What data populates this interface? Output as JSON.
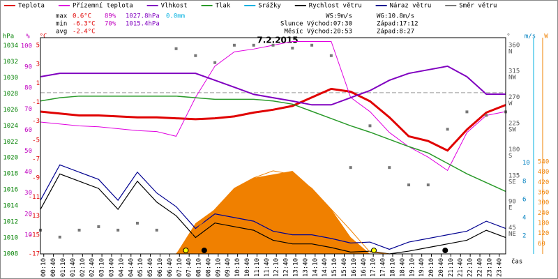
{
  "chart_data": {
    "type": "line",
    "title": "7.2.2015",
    "x_label": "čas",
    "x": [
      0,
      1,
      2,
      3,
      4,
      5,
      6,
      7,
      8,
      9,
      10,
      11,
      12,
      13,
      14,
      15,
      16,
      17,
      18,
      19,
      20,
      21,
      22,
      23,
      24
    ],
    "xlim": [
      0,
      24
    ],
    "xticks": [
      {
        "value": 0.17,
        "label": "00:10"
      },
      {
        "value": 0.67,
        "label": "00:40"
      },
      {
        "value": 1.17,
        "label": "01:10"
      },
      {
        "value": 1.67,
        "label": "01:40"
      },
      {
        "value": 2.17,
        "label": "02:10"
      },
      {
        "value": 2.67,
        "label": "02:40"
      },
      {
        "value": 3.17,
        "label": "03:10"
      },
      {
        "value": 3.67,
        "label": "03:40"
      },
      {
        "value": 4.17,
        "label": "04:10"
      },
      {
        "value": 4.67,
        "label": "04:40"
      },
      {
        "value": 5.17,
        "label": "05:10"
      },
      {
        "value": 5.67,
        "label": "05:40"
      },
      {
        "value": 6.17,
        "label": "06:10"
      },
      {
        "value": 6.67,
        "label": "06:40"
      },
      {
        "value": 7.17,
        "label": "07:10"
      },
      {
        "value": 7.67,
        "label": "07:40"
      },
      {
        "value": 8.17,
        "label": "08:10"
      },
      {
        "value": 8.67,
        "label": "08:40"
      },
      {
        "value": 9.17,
        "label": "09:10"
      },
      {
        "value": 9.67,
        "label": "09:40"
      },
      {
        "value": 10.17,
        "label": "10:10"
      },
      {
        "value": 10.67,
        "label": "10:40"
      },
      {
        "value": 11.17,
        "label": "11:10"
      },
      {
        "value": 11.67,
        "label": "11:40"
      },
      {
        "value": 12.17,
        "label": "12:10"
      },
      {
        "value": 12.67,
        "label": "12:40"
      },
      {
        "value": 13.17,
        "label": "13:10"
      },
      {
        "value": 13.67,
        "label": "13:40"
      },
      {
        "value": 14.17,
        "label": "14:10"
      },
      {
        "value": 14.67,
        "label": "14:40"
      },
      {
        "value": 15.17,
        "label": "15:10"
      },
      {
        "value": 15.67,
        "label": "15:40"
      },
      {
        "value": 16.17,
        "label": "16:10"
      },
      {
        "value": 16.67,
        "label": "16:40"
      },
      {
        "value": 17.17,
        "label": "17:10"
      },
      {
        "value": 17.67,
        "label": "17:40"
      },
      {
        "value": 18.17,
        "label": "18:10"
      },
      {
        "value": 18.67,
        "label": "18:40"
      },
      {
        "value": 19.17,
        "label": "19:10"
      },
      {
        "value": 19.67,
        "label": "19:40"
      },
      {
        "value": 20.17,
        "label": "20:10"
      },
      {
        "value": 20.67,
        "label": "20:40"
      },
      {
        "value": 21.17,
        "label": "21:10"
      },
      {
        "value": 21.67,
        "label": "21:40"
      },
      {
        "value": 22.17,
        "label": "22:10"
      },
      {
        "value": 22.67,
        "label": "22:40"
      },
      {
        "value": 23.17,
        "label": "23:10"
      },
      {
        "value": 23.67,
        "label": "23:40"
      }
    ],
    "axes": [
      {
        "label": "hPa",
        "color": "#008000",
        "lim": [
          1008,
          1035
        ],
        "ticks": [
          1008,
          1010,
          1012,
          1014,
          1016,
          1018,
          1020,
          1022,
          1024,
          1026,
          1028,
          1030,
          1032,
          1034
        ]
      },
      {
        "label": "%",
        "color": "#c000c0",
        "lim": [
          1,
          104
        ],
        "ticks": [
          10,
          20,
          30,
          40,
          50,
          60,
          70,
          80,
          90,
          100
        ]
      },
      {
        "label": "°C",
        "color": "#e00000",
        "lim": [
          -17,
          5.8
        ],
        "ticks": [
          5,
          3,
          1,
          -1,
          -3,
          -5,
          -7,
          -9,
          -11,
          -13,
          -15,
          -17
        ]
      },
      {
        "label": "°",
        "color": "#555555",
        "lim": [
          0,
          373
        ],
        "ticks": [
          {
            "value": 360,
            "label": "360",
            "compass": "N"
          },
          {
            "value": 315,
            "label": "315",
            "compass": "NW"
          },
          {
            "value": 270,
            "label": "270",
            "compass": "W"
          },
          {
            "value": 225,
            "label": "225",
            "compass": "SW"
          },
          {
            "value": 180,
            "label": "180",
            "compass": "S"
          },
          {
            "value": 135,
            "label": "135",
            "compass": "SE"
          },
          {
            "value": 90,
            "label": "90",
            "compass": "E"
          },
          {
            "value": 45,
            "label": "45",
            "compass": "NE"
          }
        ]
      },
      {
        "label": "m/s",
        "color": "#0080c0",
        "lim": [
          0,
          23.8
        ],
        "ticks": [
          2,
          4,
          6,
          8,
          10
        ]
      },
      {
        "label": "W",
        "color": "#f08000",
        "lim": [
          0,
          1268
        ],
        "ticks": [
          60,
          120,
          180,
          240,
          300,
          360,
          420,
          480,
          540
        ]
      }
    ],
    "hline": {
      "axis": "°C",
      "value": 0,
      "color": "#999999"
    },
    "series": [
      {
        "name": "Teplota",
        "color": "#e00000",
        "axis": "°C",
        "kind": "line",
        "width": 3,
        "values": [
          -2.0,
          -2.2,
          -2.4,
          -2.4,
          -2.5,
          -2.6,
          -2.6,
          -2.7,
          -2.8,
          -2.7,
          -2.5,
          -2.1,
          -1.8,
          -1.4,
          -0.5,
          0.4,
          0.1,
          -0.9,
          -2.6,
          -4.6,
          -5.1,
          -6.1,
          -3.9,
          -2.1,
          -1.3
        ]
      },
      {
        "name": "Přízemní teplota",
        "color": "#e000e0",
        "axis": "°C",
        "kind": "line",
        "width": 1,
        "values": [
          -3.1,
          -3.3,
          -3.5,
          -3.6,
          -3.8,
          -4.0,
          -4.1,
          -4.6,
          -0.5,
          2.8,
          4.3,
          4.6,
          5.0,
          5.4,
          5.4,
          5.4,
          -0.5,
          -2.0,
          -4.2,
          -5.7,
          -6.8,
          -8.2,
          -4.2,
          -2.4,
          -2.0
        ]
      },
      {
        "name": "Vlhkost",
        "color": "#8000c0",
        "axis": "%",
        "kind": "line",
        "width": 2,
        "values": [
          85.4,
          87,
          87,
          87,
          87,
          87,
          87,
          87,
          87,
          83.7,
          80.4,
          77,
          75.4,
          73.8,
          72,
          72,
          75.4,
          78.8,
          83.7,
          87,
          88.7,
          90.4,
          85.4,
          77.1,
          77.1
        ]
      },
      {
        "name": "Tlak",
        "color": "#2a9a2a",
        "axis": "hPa",
        "kind": "line",
        "width": 1.5,
        "values": [
          1027.1,
          1027.5,
          1027.7,
          1027.7,
          1027.7,
          1027.7,
          1027.7,
          1027.7,
          1027.5,
          1027.3,
          1027.3,
          1027.3,
          1027.1,
          1026.7,
          1025.8,
          1024.9,
          1024.0,
          1023.2,
          1022.3,
          1021.4,
          1020.6,
          1019.3,
          1018.0,
          1016.9,
          1015.8
        ]
      },
      {
        "name": "Srážky",
        "color": "#00b0e0",
        "axis": "m/s",
        "kind": "line",
        "width": 1.5,
        "values": [
          null,
          null,
          null,
          null,
          null,
          null,
          null,
          null,
          null,
          null,
          null,
          null,
          null,
          null,
          null,
          null,
          null,
          null,
          null,
          null,
          null,
          null,
          null,
          null,
          null
        ]
      },
      {
        "name": "Rychlost větru",
        "color": "#000000",
        "axis": "m/s",
        "kind": "line",
        "width": 1.2,
        "values": [
          4.9,
          8.8,
          8.0,
          7.2,
          4.9,
          8.0,
          5.7,
          4.2,
          1.8,
          3.4,
          3.0,
          2.6,
          1.5,
          1.1,
          1.1,
          0.7,
          0.2,
          0.3,
          0,
          0.3,
          0.7,
          1.1,
          1.5,
          2.6,
          1.8
        ]
      },
      {
        "name": "Náraz větru",
        "color": "#000090",
        "axis": "m/s",
        "kind": "line",
        "width": 1.2,
        "values": [
          5.9,
          9.8,
          9.0,
          8.2,
          5.9,
          9.0,
          6.7,
          5.2,
          2.8,
          4.4,
          4.0,
          3.6,
          2.5,
          2.1,
          2.1,
          1.7,
          1.2,
          1.3,
          0.5,
          1.3,
          1.7,
          2.1,
          2.5,
          3.6,
          2.8
        ]
      },
      {
        "name": "Směr větru",
        "color": "#777777",
        "axis": "°",
        "kind": "points",
        "values": [
          41,
          29,
          41,
          47,
          41,
          53,
          41,
          354,
          342,
          330,
          360,
          360,
          360,
          355,
          360,
          342,
          149,
          221,
          149,
          119,
          119,
          215,
          245,
          239,
          245
        ]
      },
      {
        "color": "#f08000",
        "axis": "W",
        "kind": "area",
        "values": [
          0,
          0,
          0,
          0,
          0,
          0,
          0,
          0,
          180,
          262,
          385,
          446,
          466,
          487,
          385,
          262,
          98,
          0,
          0,
          0,
          0,
          0,
          0,
          0,
          0
        ]
      },
      {
        "color": "#f08000",
        "axis": "W",
        "kind": "line",
        "width": 1,
        "values": [
          0,
          0,
          0,
          0,
          0,
          0,
          0,
          0,
          139,
          262,
          385,
          446,
          487,
          466,
          385,
          262,
          139,
          10,
          0,
          0,
          0,
          0,
          0,
          0,
          0
        ]
      }
    ],
    "events": [
      {
        "x": 7.5,
        "color": "#ffff00"
      },
      {
        "x": 17.2,
        "color": "#ffff00"
      },
      {
        "x": 8.45,
        "color": "#000000"
      },
      {
        "x": 20.88,
        "color": "#000000"
      }
    ],
    "stats": [
      {
        "label": "max",
        "cells": [
          {
            "text": "0.6°C",
            "color": "#e00000"
          },
          {
            "text": "89%",
            "color": "#c000c0"
          },
          {
            "text": "1027.8hPa",
            "color": "#8000c0"
          },
          {
            "text": "0.0mm",
            "color": "#00b0e0"
          }
        ]
      },
      {
        "label": "min",
        "cells": [
          {
            "text": "-6.3°C",
            "color": "#e00000"
          },
          {
            "text": "70%",
            "color": "#c000c0"
          },
          {
            "text": "1015.4hPa",
            "color": "#8000c0"
          }
        ]
      },
      {
        "label": "avg",
        "cells": [
          {
            "text": "-2.4°C",
            "color": "#e00000"
          }
        ]
      }
    ],
    "info": [
      [
        "WS:9m/s",
        "WG:10.8m/s"
      ],
      [
        "Slunce Východ:07:30",
        "Západ:17:12"
      ],
      [
        "Měsíc Východ:20:53",
        "Západ:8:27"
      ]
    ]
  }
}
